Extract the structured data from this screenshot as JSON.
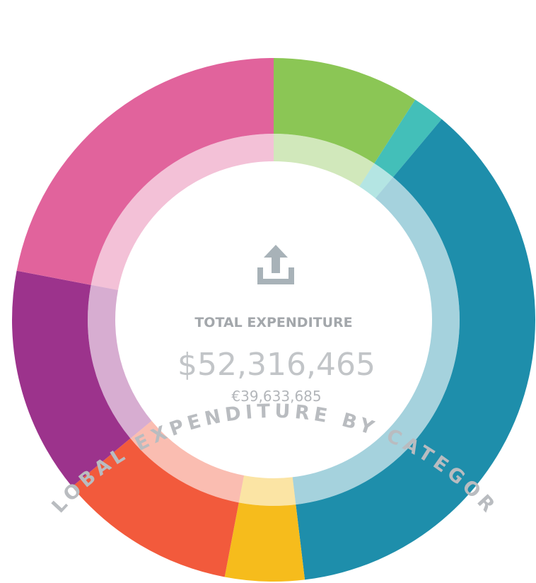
{
  "chart_data": {
    "type": "donut",
    "title": "GLOBAL EXPENDITURE BY CATEGORY",
    "center_label": "TOTAL EXPENDITURE",
    "center_value": "$52,316,465",
    "center_subvalue": "€39,633,685",
    "categories": [
      null,
      null,
      null,
      null,
      null,
      null,
      null
    ],
    "values": [
      9.1,
      2.0,
      37.0,
      4.9,
      11.0,
      14.0,
      22.0
    ],
    "colors": [
      "#8bc655",
      "#43bfb9",
      "#1e8eab",
      "#f6bc1c",
      "#f25a3c",
      "#9c338c",
      "#e1639c"
    ]
  }
}
